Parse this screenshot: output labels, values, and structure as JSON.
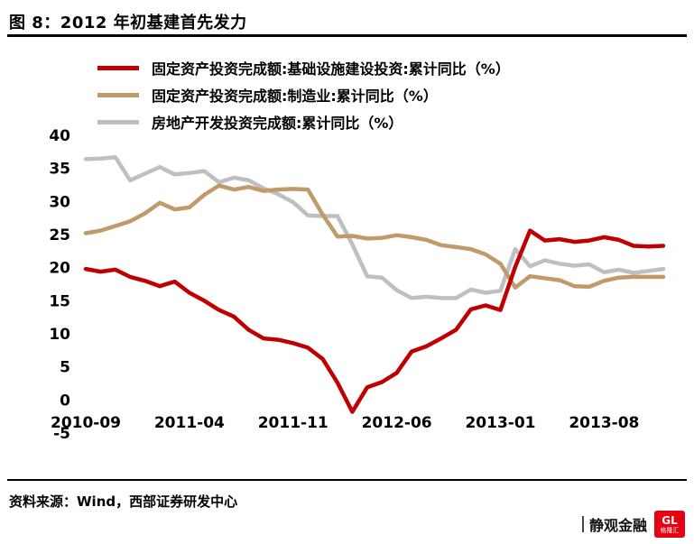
{
  "title": "图 8：2012 年初基建首先发力",
  "source": "资料来源：Wind，西部证券研发中心",
  "watermark": {
    "text": "静观金融",
    "logo_monogram": "GL",
    "logo_text": "格隆汇",
    "logo_color": "#e60012"
  },
  "chart_data": {
    "type": "line",
    "title": "",
    "xlabel": "",
    "ylabel": "",
    "grid": false,
    "legend_position": "top-left",
    "ylim": [
      -5,
      40
    ],
    "y_ticks": [
      40,
      35,
      30,
      25,
      20,
      15,
      10,
      5,
      0,
      -5
    ],
    "x_tick_labels": [
      "2010-09",
      "2011-04",
      "2011-11",
      "2012-06",
      "2013-01",
      "2013-08"
    ],
    "x_tick_indices": [
      0,
      7,
      14,
      21,
      28,
      35
    ],
    "x": [
      "2010-09",
      "2010-10",
      "2010-11",
      "2010-12",
      "2011-01",
      "2011-02",
      "2011-03",
      "2011-04",
      "2011-05",
      "2011-06",
      "2011-07",
      "2011-08",
      "2011-09",
      "2011-10",
      "2011-11",
      "2011-12",
      "2012-01",
      "2012-02",
      "2012-03",
      "2012-04",
      "2012-05",
      "2012-06",
      "2012-07",
      "2012-08",
      "2012-09",
      "2012-10",
      "2012-11",
      "2012-12",
      "2013-01",
      "2013-02",
      "2013-03",
      "2013-04",
      "2013-05",
      "2013-06",
      "2013-07",
      "2013-08",
      "2013-09",
      "2013-10",
      "2013-11",
      "2013-12"
    ],
    "series": [
      {
        "name": "固定资产投资完成额:基础设施建设投资:累计同比（%）",
        "color": "#c00000",
        "values": [
          19.8,
          19.4,
          19.7,
          18.6,
          18.0,
          17.2,
          17.9,
          16.2,
          15.0,
          13.6,
          12.6,
          10.6,
          9.3,
          9.1,
          8.6,
          7.9,
          6.2,
          2.6,
          -1.8,
          1.9,
          2.7,
          4.1,
          7.3,
          8.1,
          9.3,
          10.6,
          13.7,
          14.3,
          13.6,
          20.1,
          25.6,
          24.1,
          24.3,
          23.9,
          24.1,
          24.6,
          24.2,
          23.3,
          23.2,
          23.3
        ]
      },
      {
        "name": "固定资产投资完成额:制造业:累计同比（%）",
        "color": "#c09a6a",
        "values": [
          25.2,
          25.6,
          26.3,
          27.0,
          28.2,
          29.8,
          28.8,
          29.1,
          31.0,
          32.4,
          31.8,
          32.2,
          31.6,
          31.8,
          31.9,
          31.8,
          28.0,
          24.7,
          24.8,
          24.4,
          24.5,
          24.9,
          24.6,
          24.2,
          23.4,
          23.1,
          22.8,
          22.0,
          20.6,
          17.0,
          18.7,
          18.4,
          18.1,
          17.2,
          17.1,
          18.0,
          18.5,
          18.6,
          18.6,
          18.6
        ]
      },
      {
        "name": "房地产开发投资完成额:累计同比（%）",
        "color": "#bfbfbf",
        "values": [
          36.4,
          36.5,
          36.7,
          33.2,
          34.2,
          35.2,
          34.1,
          34.3,
          34.6,
          32.9,
          33.6,
          33.2,
          32.0,
          31.1,
          29.9,
          27.9,
          27.8,
          27.8,
          23.5,
          18.7,
          18.5,
          16.6,
          15.4,
          15.6,
          15.4,
          15.4,
          16.7,
          16.2,
          16.5,
          22.8,
          20.2,
          21.1,
          20.6,
          20.3,
          20.5,
          19.3,
          19.7,
          19.2,
          19.5,
          19.8
        ]
      }
    ]
  }
}
